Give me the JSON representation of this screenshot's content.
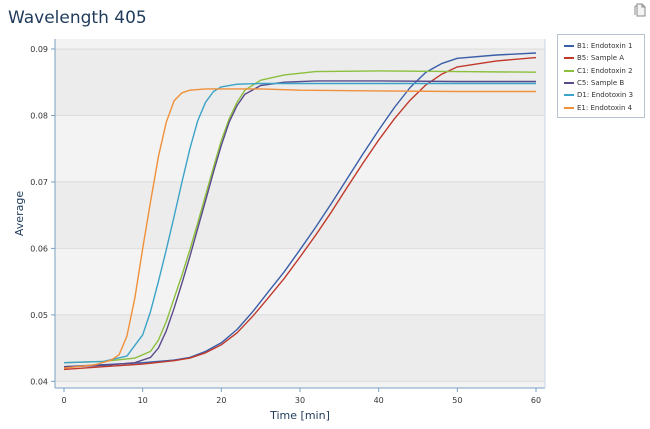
{
  "chart_data": {
    "type": "line",
    "title": "Wavelength 405",
    "xlabel": "Time [min]",
    "ylabel": "Average",
    "xlim": [
      0,
      60
    ],
    "ylim": [
      0.039,
      0.0915
    ],
    "xticks": [
      0,
      10,
      20,
      30,
      40,
      50,
      60
    ],
    "yticks": [
      0.04,
      0.05,
      0.06,
      0.07,
      0.08,
      0.09
    ],
    "ytick_labels": [
      "0.04",
      "0.05",
      "0.06",
      "0.07",
      "0.08",
      "0.09"
    ],
    "grid": "horizontal",
    "legend_position": "top-right",
    "series": [
      {
        "name": "B1: Endotoxin 1",
        "color": "#3a5ea8",
        "x": [
          0,
          5,
          10,
          14,
          16,
          18,
          20,
          22,
          24,
          26,
          28,
          30,
          32,
          34,
          36,
          38,
          40,
          42,
          44,
          46,
          48,
          50,
          55,
          60
        ],
        "y": [
          0.0422,
          0.0425,
          0.0428,
          0.0432,
          0.0436,
          0.0445,
          0.0458,
          0.0478,
          0.0505,
          0.0535,
          0.0565,
          0.0598,
          0.0632,
          0.0668,
          0.0705,
          0.0742,
          0.0778,
          0.0812,
          0.0842,
          0.0865,
          0.0878,
          0.0886,
          0.0891,
          0.0894
        ]
      },
      {
        "name": "B5: Sample A",
        "color": "#c0392b",
        "x": [
          0,
          5,
          10,
          14,
          16,
          18,
          20,
          22,
          24,
          26,
          28,
          30,
          32,
          34,
          36,
          38,
          40,
          42,
          44,
          46,
          48,
          50,
          55,
          60
        ],
        "y": [
          0.0418,
          0.0422,
          0.0426,
          0.0431,
          0.0435,
          0.0443,
          0.0455,
          0.0473,
          0.0498,
          0.0526,
          0.0555,
          0.0587,
          0.062,
          0.0655,
          0.0692,
          0.0728,
          0.0763,
          0.0795,
          0.0823,
          0.0846,
          0.0862,
          0.0873,
          0.0882,
          0.0887
        ]
      },
      {
        "name": "C1: Endotoxin 2",
        "color": "#8bbf3d",
        "x": [
          0,
          5,
          9,
          11,
          12,
          13,
          14,
          15,
          16,
          17,
          18,
          19,
          20,
          21,
          22,
          23,
          25,
          28,
          32,
          40,
          50,
          60
        ],
        "y": [
          0.0428,
          0.043,
          0.0435,
          0.0445,
          0.0462,
          0.049,
          0.0525,
          0.056,
          0.0598,
          0.0638,
          0.068,
          0.0722,
          0.0762,
          0.0795,
          0.082,
          0.0838,
          0.0853,
          0.0861,
          0.0866,
          0.0867,
          0.0866,
          0.0865
        ]
      },
      {
        "name": "C5: Sample B",
        "color": "#5b4a8b",
        "x": [
          0,
          5,
          9,
          11,
          12,
          13,
          14,
          15,
          16,
          17,
          18,
          19,
          20,
          21,
          22,
          23,
          25,
          28,
          32,
          40,
          50,
          60
        ],
        "y": [
          0.0422,
          0.0424,
          0.0428,
          0.0436,
          0.045,
          0.0476,
          0.051,
          0.0548,
          0.0588,
          0.063,
          0.0672,
          0.0715,
          0.0755,
          0.079,
          0.0815,
          0.0832,
          0.0845,
          0.085,
          0.0852,
          0.0852,
          0.0851,
          0.0851
        ]
      },
      {
        "name": "D1: Endotoxin 3",
        "color": "#3ba3c7",
        "x": [
          0,
          5,
          8,
          10,
          11,
          12,
          13,
          14,
          15,
          16,
          17,
          18,
          19,
          20,
          22,
          25,
          30,
          40,
          50,
          60
        ],
        "y": [
          0.0428,
          0.043,
          0.0438,
          0.047,
          0.0505,
          0.055,
          0.0598,
          0.0648,
          0.07,
          0.075,
          0.0792,
          0.082,
          0.0836,
          0.0843,
          0.0847,
          0.0848,
          0.0848,
          0.0848,
          0.0848,
          0.0848
        ]
      },
      {
        "name": "E1: Endotoxin 4",
        "color": "#f0903a",
        "x": [
          0,
          4,
          6,
          7,
          8,
          9,
          10,
          11,
          12,
          13,
          14,
          15,
          16,
          18,
          20,
          25,
          30,
          40,
          50,
          60
        ],
        "y": [
          0.042,
          0.0425,
          0.0432,
          0.044,
          0.0468,
          0.0525,
          0.06,
          0.067,
          0.0738,
          0.079,
          0.0822,
          0.0834,
          0.0838,
          0.084,
          0.084,
          0.084,
          0.0838,
          0.0837,
          0.0836,
          0.0836
        ]
      }
    ]
  },
  "icons": {
    "export": "copy-document-icon"
  },
  "colors": {
    "title": "#1f3a5a",
    "plot_background": "#f3f3f3",
    "axis": "#7aa0c4",
    "grid": "#ffffff"
  }
}
